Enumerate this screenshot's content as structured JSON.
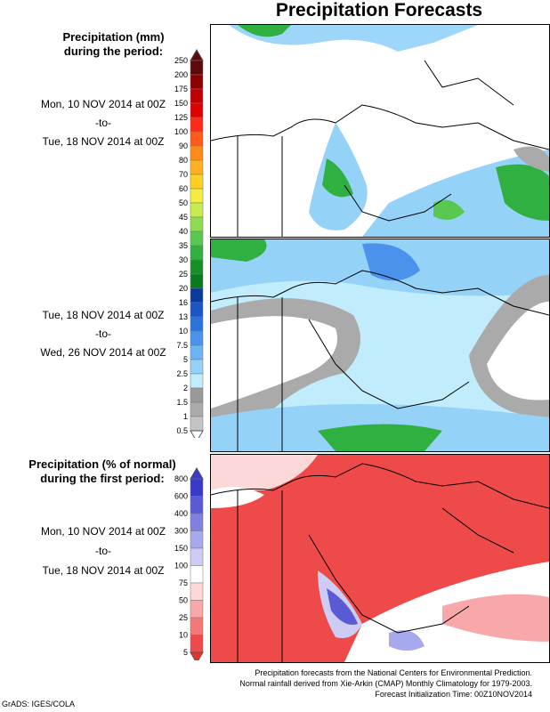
{
  "title": "Precipitation Forecasts",
  "legend1": {
    "heading": [
      "Precipitation (mm)",
      "during the period:"
    ],
    "ticks": [
      "250",
      "200",
      "175",
      "150",
      "125",
      "100",
      "90",
      "80",
      "70",
      "60",
      "50",
      "45",
      "40",
      "35",
      "30",
      "25",
      "20",
      "16",
      "13",
      "10",
      "7.5",
      "5",
      "2.5",
      "2",
      "1.5",
      "1",
      "0.5"
    ],
    "colors": [
      "#5c0a0a",
      "#8b0000",
      "#c00000",
      "#e00000",
      "#ff2a1a",
      "#ff5a1a",
      "#ff8a1a",
      "#ffb020",
      "#ffd020",
      "#f4ec40",
      "#c8ec50",
      "#90dc50",
      "#58c850",
      "#30b040",
      "#189028",
      "#0a7a20",
      "#0a3a9a",
      "#1a56c8",
      "#2a72dc",
      "#4a92ec",
      "#6ab4f4",
      "#94d2f8",
      "#c0ecfc",
      "#999999",
      "#aaaaaa",
      "#c4c4c4",
      "#ffffff"
    ]
  },
  "period1": {
    "start": "Mon, 10 NOV 2014 at 00Z",
    "sep": "-to-",
    "end": "Tue, 18 NOV 2014 at 00Z"
  },
  "period2": {
    "start": "Tue, 18 NOV 2014 at 00Z",
    "sep": "-to-",
    "end": "Wed, 26 NOV 2014 at 00Z"
  },
  "legend2": {
    "heading": [
      "Precipitation (% of normal)",
      "during the first period:"
    ],
    "ticks": [
      "800",
      "600",
      "400",
      "300",
      "150",
      "100",
      "75",
      "50",
      "25",
      "10",
      "5"
    ],
    "colors": [
      "#3a3ac8",
      "#5a5ad4",
      "#8080e0",
      "#a8a8ec",
      "#ccccf4",
      "#ffffff",
      "#fcd8d8",
      "#f8a8a8",
      "#f47878",
      "#ee4a4a",
      "#e8322c"
    ]
  },
  "period3": {
    "start": "Mon, 10 NOV 2014 at 00Z",
    "sep": "-to-",
    "end": "Tue, 18 NOV 2014 at 00Z"
  },
  "footer": {
    "line1": "Precipitation forecasts from the National Centers for Environmental Prediction.",
    "line2": "Normal rainfall derived from Xie-Arkin (CMAP) Monthly Climatology for 1979-2003.",
    "line3": "Forecast Initialization Time: 00Z10NOV2014",
    "credit": "GrADS: IGES/COLA"
  }
}
